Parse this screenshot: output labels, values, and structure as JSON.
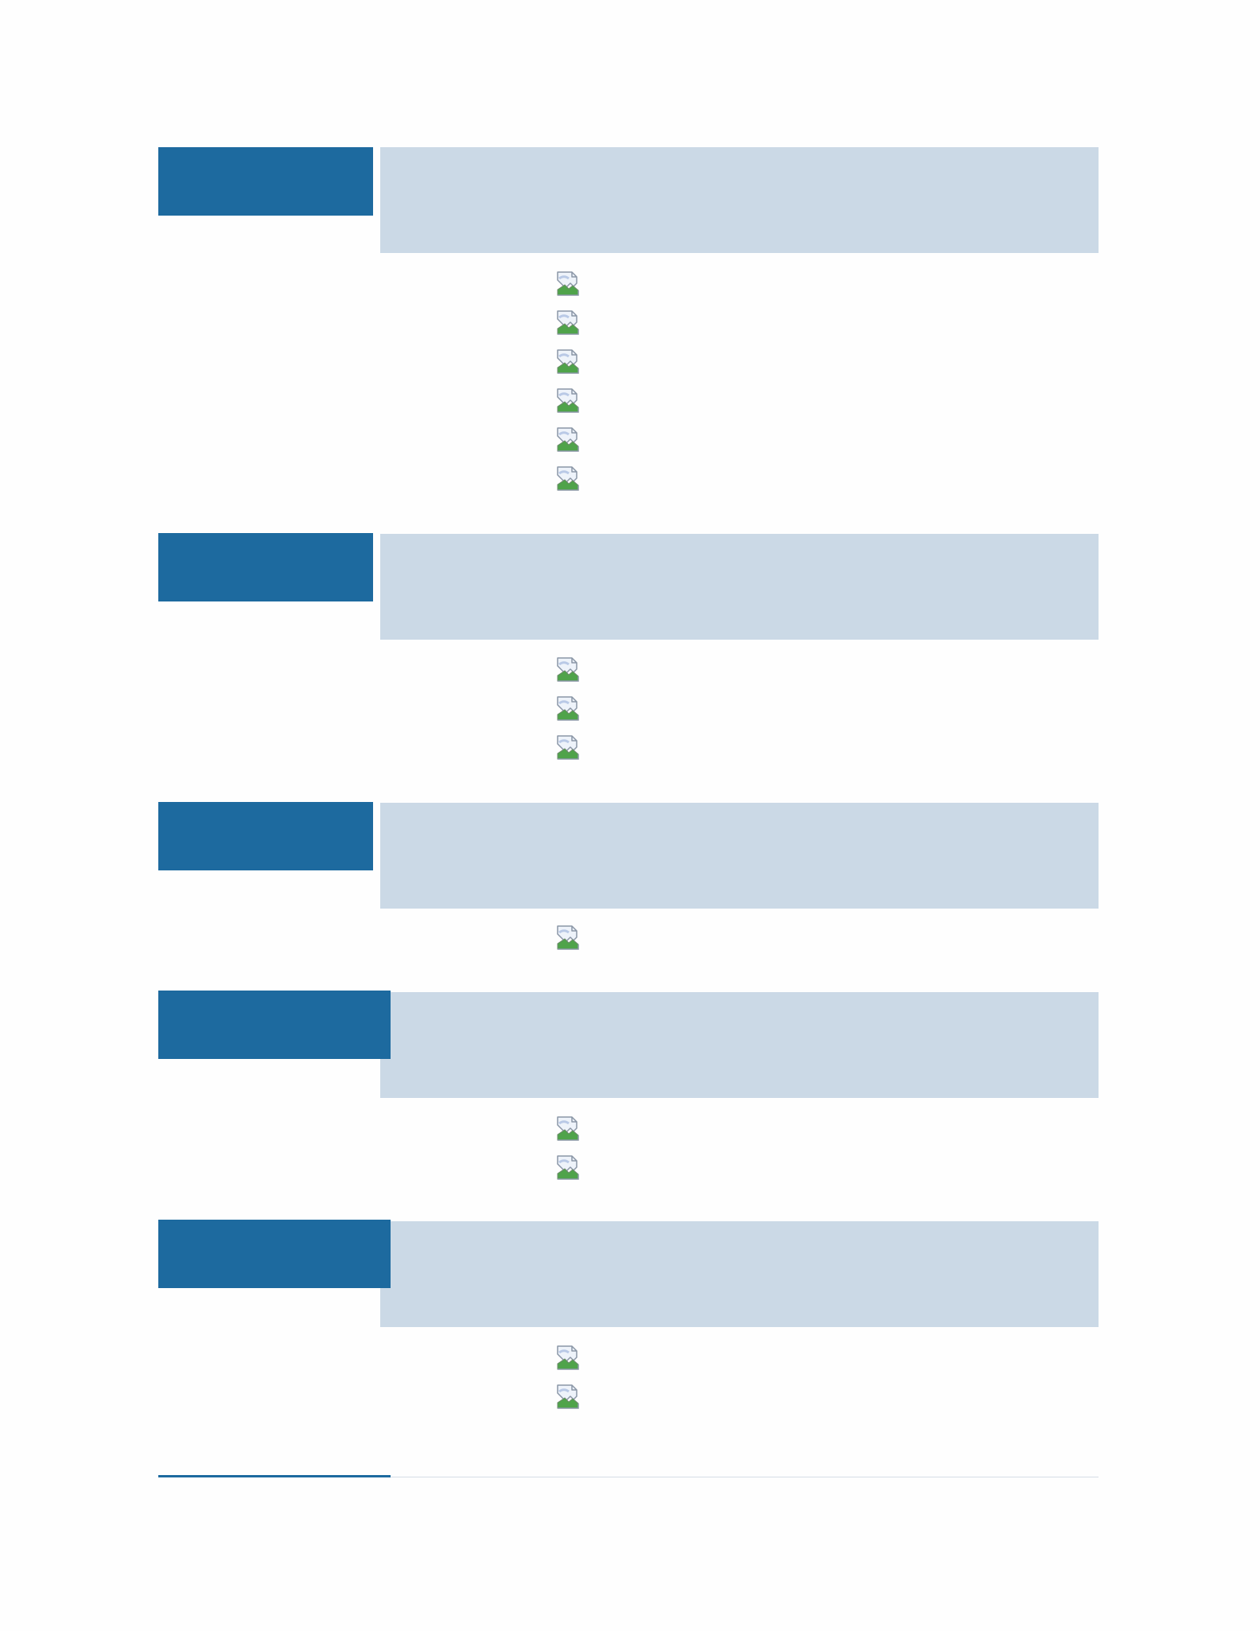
{
  "colors": {
    "page_background": "#fefefe",
    "tag_blue": "#1d6a9f",
    "banner_light_blue": "#cbd9e6",
    "footer_rule": "#d6dee6"
  },
  "sections": [
    {
      "tag_label": "",
      "banner_text": "",
      "image_count": 6,
      "icon": "broken-image-icon"
    },
    {
      "tag_label": "",
      "banner_text": "",
      "image_count": 3,
      "icon": "broken-image-icon"
    },
    {
      "tag_label": "",
      "banner_text": "",
      "image_count": 1,
      "icon": "broken-image-icon"
    },
    {
      "tag_label": "",
      "banner_text": "",
      "image_count": 2,
      "icon": "broken-image-icon"
    },
    {
      "tag_label": "",
      "banner_text": "",
      "image_count": 2,
      "icon": "broken-image-icon"
    }
  ]
}
